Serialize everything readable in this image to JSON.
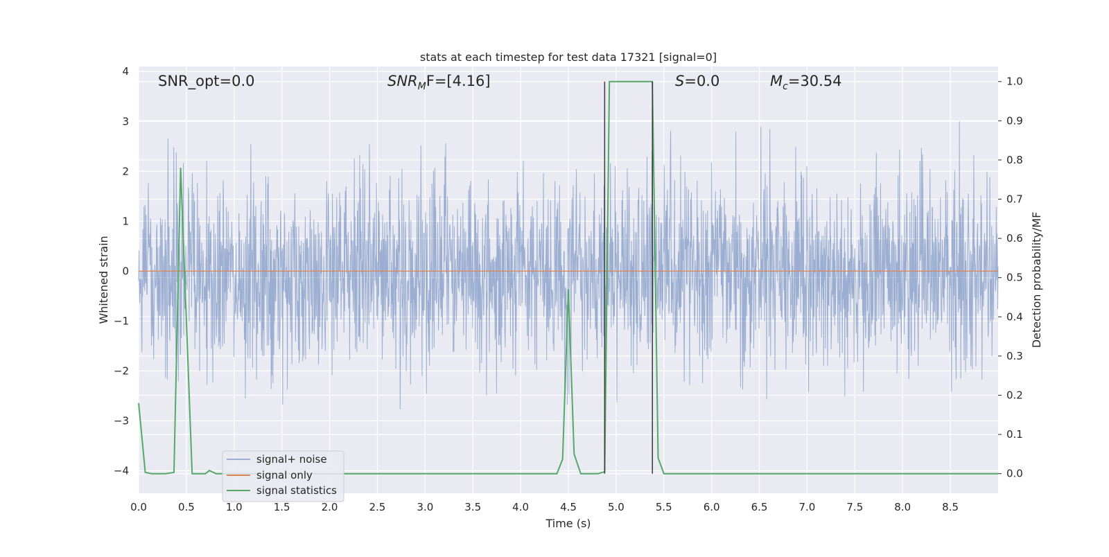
{
  "chart_data": {
    "type": "line",
    "title": "stats at each timestep for test data 17321 [signal=0]",
    "xlabel": "Time (s)",
    "ylabel_left": "Whitened strain",
    "ylabel_right": "Detection probability/MF",
    "xlim": [
      0.0,
      9.0
    ],
    "ylim_left": [
      -4.45,
      4.1
    ],
    "ylim_right": [
      -0.05,
      1.0384
    ],
    "x_ticks": [
      0.0,
      0.5,
      1.0,
      1.5,
      2.0,
      2.5,
      3.0,
      3.5,
      4.0,
      4.5,
      5.0,
      5.5,
      6.0,
      6.5,
      7.0,
      7.5,
      8.0,
      8.5
    ],
    "x_tick_labels": [
      "0.0",
      "0.5",
      "1.0",
      "1.5",
      "2.0",
      "2.5",
      "3.0",
      "3.5",
      "4.0",
      "4.5",
      "5.0",
      "5.5",
      "6.0",
      "6.5",
      "7.0",
      "7.5",
      "8.0",
      "8.5"
    ],
    "y_left_ticks": [
      -4,
      -3,
      -2,
      -1,
      0,
      1,
      2,
      3,
      4
    ],
    "y_left_tick_labels": [
      "−4",
      "−3",
      "−2",
      "−1",
      "0",
      "1",
      "2",
      "3",
      "4"
    ],
    "y_right_ticks": [
      0.0,
      0.1,
      0.2,
      0.3,
      0.4,
      0.5,
      0.6,
      0.7,
      0.8,
      0.9,
      1.0
    ],
    "y_right_tick_labels": [
      "0.0",
      "0.1",
      "0.2",
      "0.3",
      "0.4",
      "0.5",
      "0.6",
      "0.7",
      "0.8",
      "0.9",
      "1.0"
    ],
    "grid": true,
    "legend_position": "lower-left",
    "annotations": {
      "snr_opt": "SNR_opt=0.0",
      "snr_mf_base": "SNR",
      "snr_mf_sub": "M",
      "snr_mf_rest": "F=[4.16]",
      "s_base": "S",
      "s_rest": "=0.0",
      "mc_base": "M",
      "mc_sub": "c",
      "mc_rest": "=30.54"
    },
    "vertical_lines_x": [
      4.88,
      5.38
    ],
    "series": [
      {
        "name": "signal+ noise",
        "axis": "left",
        "color": "#4c72b0",
        "description_kind": "noise",
        "std": 0.95,
        "n_samples": 2400,
        "seed": 17321
      },
      {
        "name": "signal only",
        "axis": "left",
        "color": "#dd8452",
        "x": [
          0.0,
          9.0
        ],
        "y": [
          0.0,
          0.0
        ]
      },
      {
        "name": "signal statistics",
        "axis": "right",
        "color": "#55a868",
        "x": [
          0.0,
          0.07,
          0.14,
          0.28,
          0.37,
          0.44,
          0.56,
          0.63,
          0.7,
          0.74,
          0.81,
          0.88,
          4.38,
          4.44,
          4.5,
          4.56,
          4.63,
          4.81,
          4.88,
          4.93,
          5.38,
          5.44,
          5.5,
          9.0
        ],
        "y": [
          0.18,
          0.003,
          0.0,
          0.0,
          0.003,
          0.78,
          0.0,
          0.0,
          0.0,
          0.008,
          0.0,
          0.0,
          0.0,
          0.037,
          0.47,
          0.05,
          0.0,
          0.0,
          0.005,
          1.0,
          1.0,
          0.04,
          0.0,
          0.0
        ]
      }
    ]
  }
}
